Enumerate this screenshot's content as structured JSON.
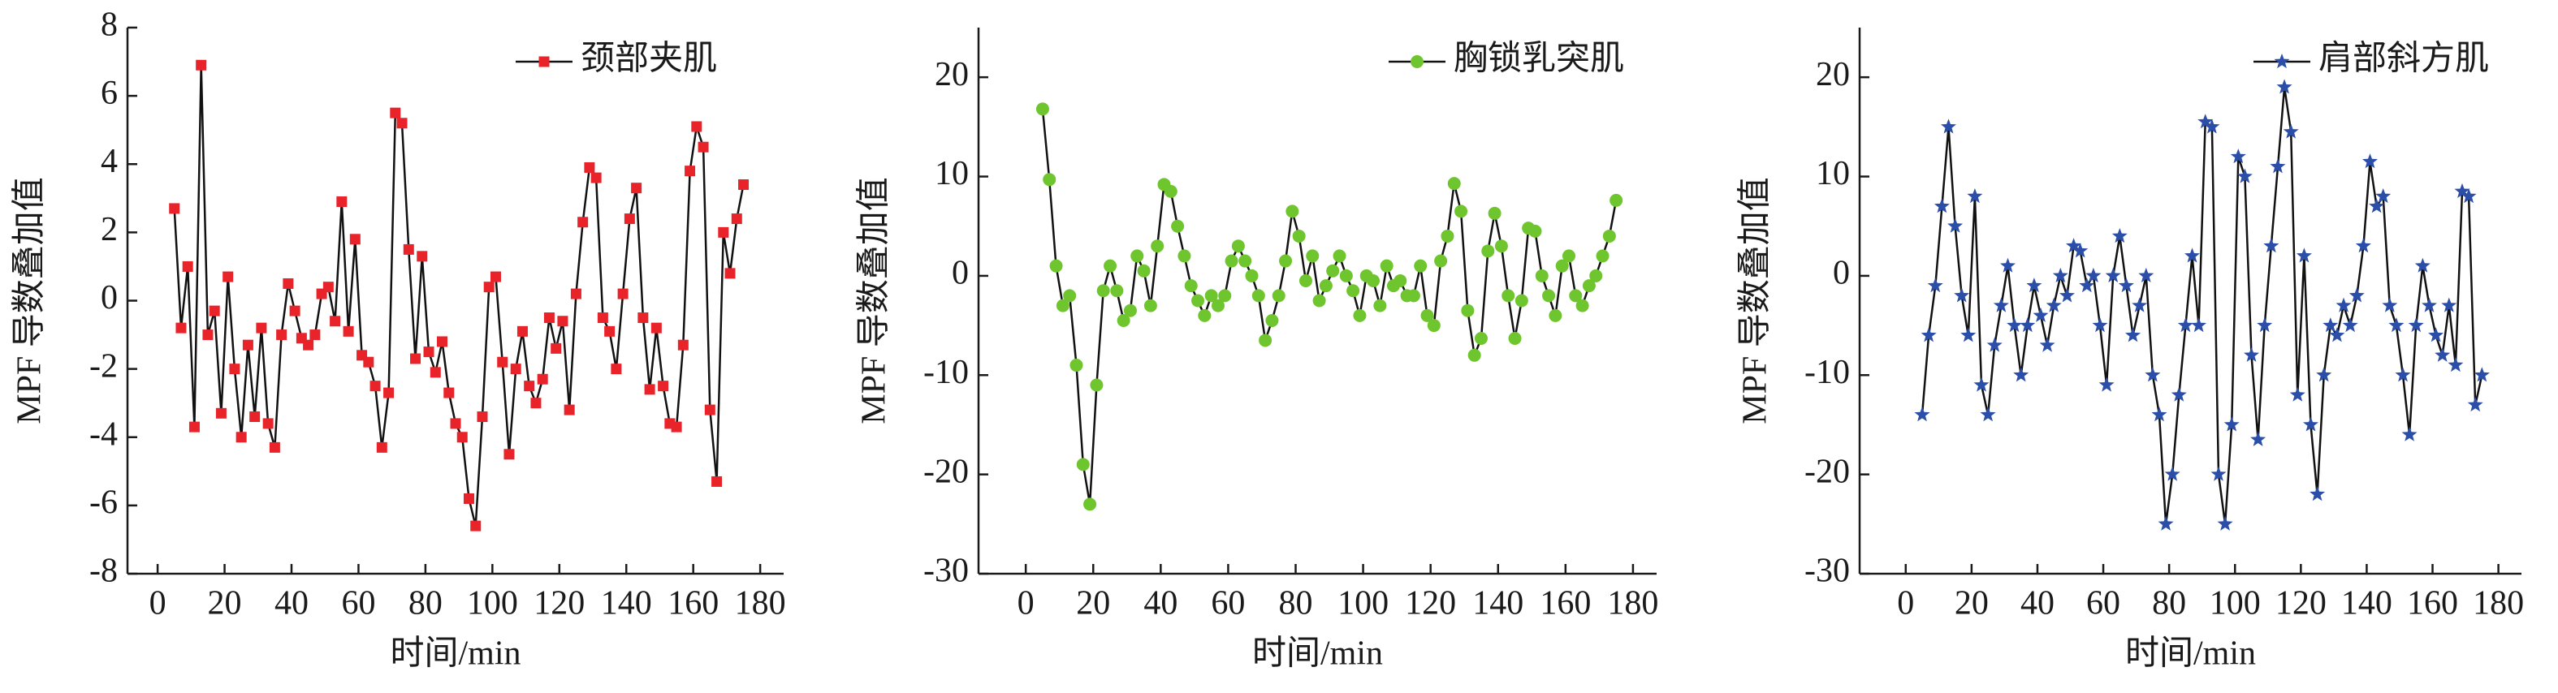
{
  "chart_data": [
    {
      "type": "line",
      "xlabel": "时间/min",
      "ylabel": "MPF 导数叠加值",
      "legend": "upper right",
      "marker": "square",
      "x": [
        5,
        7,
        9,
        11,
        13,
        15,
        17,
        19,
        21,
        23,
        25,
        27,
        29,
        31,
        33,
        35,
        37,
        39,
        41,
        43,
        45,
        47,
        49,
        51,
        53,
        55,
        57,
        59,
        61,
        63,
        65,
        67,
        69,
        71,
        73,
        75,
        77,
        79,
        81,
        83,
        85,
        87,
        89,
        91,
        93,
        95,
        97,
        99,
        101,
        103,
        105,
        107,
        109,
        111,
        113,
        115,
        117,
        119,
        121,
        123,
        125,
        127,
        129,
        131,
        133,
        135,
        137,
        139,
        141,
        143,
        145,
        147,
        149,
        151,
        153,
        155,
        157,
        159,
        161,
        163,
        165,
        167,
        169,
        171,
        173,
        175
      ],
      "series": [
        {
          "name": "颈部夹肌",
          "color": "#e8232a",
          "values": [
            2.7,
            -0.8,
            1.0,
            -3.7,
            6.9,
            -1.0,
            -0.3,
            -3.3,
            0.7,
            -2.0,
            -4.0,
            -1.3,
            -3.4,
            -0.8,
            -3.6,
            -4.3,
            -1.0,
            0.5,
            -0.3,
            -1.1,
            -1.3,
            -1.0,
            0.2,
            0.4,
            -0.6,
            2.9,
            -0.9,
            1.8,
            -1.6,
            -1.8,
            -2.5,
            -4.3,
            -2.7,
            5.5,
            5.2,
            1.5,
            -1.7,
            1.3,
            -1.5,
            -2.1,
            -1.2,
            -2.7,
            -3.6,
            -4.0,
            -5.8,
            -6.6,
            -3.4,
            0.4,
            0.7,
            -1.8,
            -4.5,
            -2.0,
            -0.9,
            -2.5,
            -3.0,
            -2.3,
            -0.5,
            -1.4,
            -0.6,
            -3.2,
            0.2,
            2.3,
            3.9,
            3.6,
            -0.5,
            -0.9,
            -2.0,
            0.2,
            2.4,
            3.3,
            -0.5,
            -2.6,
            -0.8,
            -2.5,
            -3.6,
            -3.7,
            -1.3,
            3.8,
            5.1,
            4.5,
            -3.2,
            -5.3,
            2.0,
            0.8,
            2.4,
            3.4
          ]
        }
      ],
      "xlim": [
        -9,
        187
      ],
      "ylim": [
        -8,
        8
      ],
      "xticks": [
        0,
        20,
        40,
        60,
        80,
        100,
        120,
        140,
        160,
        180
      ],
      "yticks": [
        -8,
        -6,
        -4,
        -2,
        0,
        2,
        4,
        6,
        8
      ]
    },
    {
      "type": "line",
      "xlabel": "时间/min",
      "ylabel": "MPF 导数叠加值",
      "legend": "upper right",
      "marker": "circle",
      "x": [
        5,
        7,
        9,
        11,
        13,
        15,
        17,
        19,
        21,
        23,
        25,
        27,
        29,
        31,
        33,
        35,
        37,
        39,
        41,
        43,
        45,
        47,
        49,
        51,
        53,
        55,
        57,
        59,
        61,
        63,
        65,
        67,
        69,
        71,
        73,
        75,
        77,
        79,
        81,
        83,
        85,
        87,
        89,
        91,
        93,
        95,
        97,
        99,
        101,
        103,
        105,
        107,
        109,
        111,
        113,
        115,
        117,
        119,
        121,
        123,
        125,
        127,
        129,
        131,
        133,
        135,
        137,
        139,
        141,
        143,
        145,
        147,
        149,
        151,
        153,
        155,
        157,
        159,
        161,
        163,
        165,
        167,
        169,
        171,
        173,
        175
      ],
      "series": [
        {
          "name": "胸锁乳突肌",
          "color": "#6fc52d",
          "values": [
            16.8,
            9.7,
            1,
            -3,
            -2,
            -9,
            -19,
            -23,
            -11,
            -1.5,
            1,
            -1.5,
            -4.5,
            -3.5,
            2,
            0.5,
            -3,
            3,
            9.2,
            8.5,
            5,
            2,
            -1,
            -2.5,
            -4,
            -2,
            -3,
            -2,
            1.5,
            3,
            1.5,
            0,
            -2,
            -6.5,
            -4.5,
            -2,
            1.5,
            6.5,
            4,
            -0.5,
            2,
            -2.5,
            -1,
            0.5,
            2,
            0,
            -1.5,
            -4,
            0,
            -0.5,
            -3,
            1,
            -1,
            -0.5,
            -2,
            -2,
            1,
            -4,
            -5,
            1.5,
            4,
            9.3,
            6.5,
            -3.5,
            -8,
            -6.3,
            2.5,
            6.3,
            3,
            -2,
            -6.3,
            -2.5,
            4.8,
            4.5,
            0,
            -2,
            -4,
            1,
            2,
            -2,
            -3,
            -1,
            0,
            2,
            4,
            7.6
          ]
        }
      ],
      "xlim": [
        -14,
        187
      ],
      "ylim": [
        -30,
        25
      ],
      "xticks": [
        0,
        20,
        40,
        60,
        80,
        100,
        120,
        140,
        160,
        180
      ],
      "yticks": [
        -30,
        -20,
        -10,
        0,
        10,
        20
      ]
    },
    {
      "type": "line",
      "xlabel": "时间/min",
      "ylabel": "MPF 导数叠加值",
      "legend": "upper right",
      "marker": "star",
      "x": [
        5,
        7,
        9,
        11,
        13,
        15,
        17,
        19,
        21,
        23,
        25,
        27,
        29,
        31,
        33,
        35,
        37,
        39,
        41,
        43,
        45,
        47,
        49,
        51,
        53,
        55,
        57,
        59,
        61,
        63,
        65,
        67,
        69,
        71,
        73,
        75,
        77,
        79,
        81,
        83,
        85,
        87,
        89,
        91,
        93,
        95,
        97,
        99,
        101,
        103,
        105,
        107,
        109,
        111,
        113,
        115,
        117,
        119,
        121,
        123,
        125,
        127,
        129,
        131,
        133,
        135,
        137,
        139,
        141,
        143,
        145,
        147,
        149,
        151,
        153,
        155,
        157,
        159,
        161,
        163,
        165,
        167,
        169,
        171,
        173,
        175
      ],
      "series": [
        {
          "name": "肩部斜方肌",
          "color": "#2b4ea8",
          "values": [
            -14,
            -6,
            -1,
            7,
            15,
            5,
            -2,
            -6,
            8,
            -11,
            -14,
            -7,
            -3,
            1,
            -5,
            -10,
            -5,
            -1,
            -4,
            -7,
            -3,
            0,
            -2,
            3,
            2.5,
            -1,
            0,
            -5,
            -11,
            0,
            4,
            -1,
            -6,
            -3,
            0,
            -10,
            -14,
            -25,
            -20,
            -12,
            -5,
            2,
            -5,
            15.5,
            15,
            -20,
            -25,
            -15,
            12,
            10,
            -8,
            -16.5,
            -5,
            3,
            11,
            19,
            14.5,
            -12,
            2,
            -15,
            -22,
            -10,
            -5,
            -6,
            -3,
            -5,
            -2,
            3,
            11.5,
            7,
            8,
            -3,
            -5,
            -10,
            -16,
            -5,
            1,
            -3,
            -6,
            -8,
            -3,
            -9,
            8.5,
            8,
            -13,
            -10
          ]
        }
      ],
      "xlim": [
        -14,
        187
      ],
      "ylim": [
        -30,
        25
      ],
      "xticks": [
        0,
        20,
        40,
        60,
        80,
        100,
        120,
        140,
        160,
        180
      ],
      "yticks": [
        -30,
        -20,
        -10,
        0,
        10,
        20
      ]
    }
  ]
}
